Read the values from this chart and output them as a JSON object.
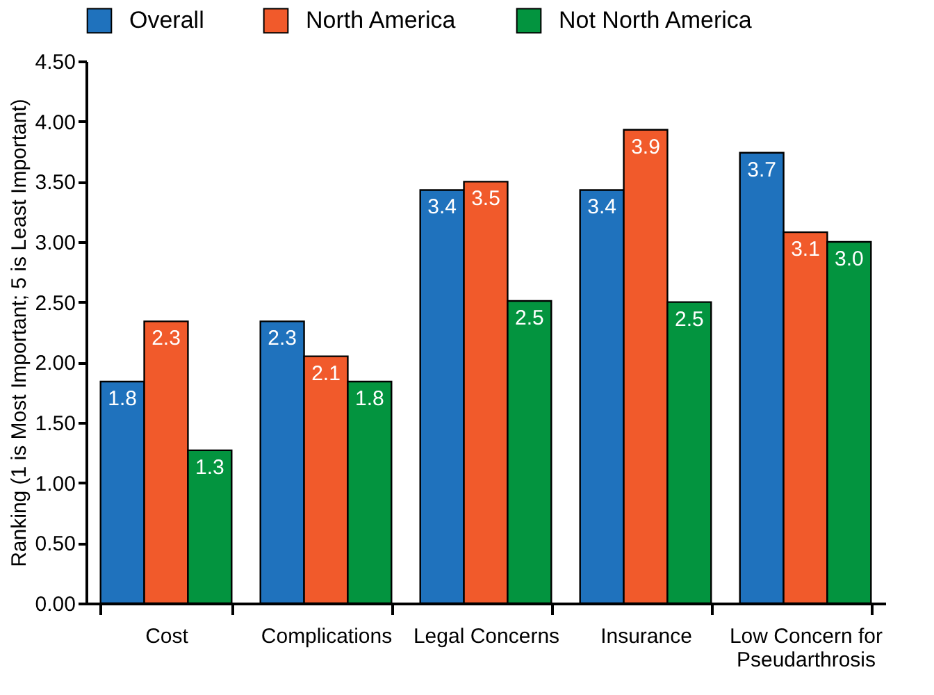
{
  "chart_data": {
    "type": "bar",
    "ylabel": "Ranking (1 is Most Important; 5 is Least Important)",
    "categories": [
      "Cost",
      "Complications",
      "Legal Concerns",
      "Insurance",
      "Low Concern for Pseudarthrosis"
    ],
    "series": [
      {
        "name": "Overall",
        "color": "#1f72bd",
        "values": [
          1.84,
          2.34,
          3.43,
          3.43,
          3.74
        ],
        "value_labels": [
          "1.8",
          "2.3",
          "3.4",
          "3.4",
          "3.7"
        ]
      },
      {
        "name": "North America",
        "color": "#f15a2b",
        "values": [
          2.34,
          2.05,
          3.5,
          3.93,
          3.08
        ],
        "value_labels": [
          "2.3",
          "2.1",
          "3.5",
          "3.9",
          "3.1"
        ]
      },
      {
        "name": "Not North America",
        "color": "#03943f",
        "values": [
          1.27,
          1.84,
          2.51,
          2.5,
          3.0
        ],
        "value_labels": [
          "1.3",
          "1.8",
          "2.5",
          "2.5",
          "3.0"
        ]
      }
    ],
    "ylim": [
      0,
      4.5
    ],
    "yticks": [
      {
        "value": 0,
        "label": "0.00"
      },
      {
        "value": 0.5,
        "label": "0.50"
      },
      {
        "value": 1,
        "label": "1.00"
      },
      {
        "value": 1.5,
        "label": "1.50"
      },
      {
        "value": 2,
        "label": "2.00"
      },
      {
        "value": 2.5,
        "label": "2.50"
      },
      {
        "value": 3,
        "label": "3.00"
      },
      {
        "value": 3.5,
        "label": "3.50"
      },
      {
        "value": 4,
        "label": "4.00"
      },
      {
        "value": 4.5,
        "label": "4.50"
      }
    ],
    "grid": false,
    "legend": "top"
  }
}
